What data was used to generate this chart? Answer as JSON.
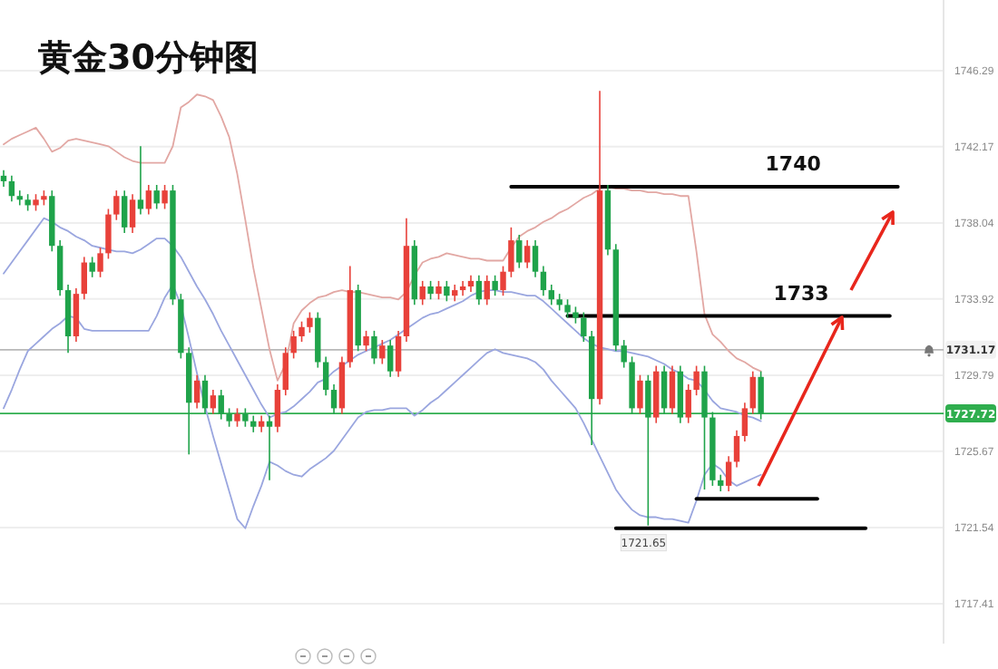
{
  "chart_data": {
    "type": "candlestick",
    "title": "黄金30分钟图",
    "categories": [
      null,
      null,
      null,
      null,
      null,
      null,
      null,
      null,
      null,
      null,
      null,
      null,
      null,
      null,
      null,
      null,
      null,
      null,
      null,
      null,
      null,
      null,
      null,
      null,
      null,
      null,
      null,
      null,
      null,
      null,
      null,
      null,
      null,
      null,
      null,
      null,
      null,
      null,
      null,
      null,
      null,
      null,
      null,
      null,
      null,
      null,
      null,
      null,
      null,
      null,
      null,
      null,
      null,
      null,
      null,
      null,
      null,
      null,
      null,
      null,
      null,
      null,
      null,
      null,
      null,
      null,
      null,
      null,
      null,
      null,
      null,
      null,
      null,
      null,
      null,
      null,
      null,
      null,
      null,
      null,
      null,
      null,
      null,
      null,
      null,
      null,
      null,
      null,
      null,
      null,
      null,
      null,
      null,
      null,
      null,
      null,
      null,
      null,
      null,
      null,
      null,
      null,
      null,
      null,
      null,
      null,
      null,
      null,
      null,
      null,
      null,
      null,
      null,
      null,
      null,
      null,
      null
    ],
    "ohlc": [
      [
        1740.6,
        1740.9,
        1740.0,
        1740.3
      ],
      [
        1740.3,
        1740.6,
        1739.2,
        1739.5
      ],
      [
        1739.5,
        1739.8,
        1739.0,
        1739.3
      ],
      [
        1739.3,
        1739.6,
        1738.7,
        1739.0
      ],
      [
        1739.0,
        1739.6,
        1738.7,
        1739.3
      ],
      [
        1739.3,
        1739.8,
        1739.0,
        1739.5
      ],
      [
        1739.5,
        1739.8,
        1736.5,
        1736.8
      ],
      [
        1736.8,
        1737.1,
        1734.1,
        1734.4
      ],
      [
        1734.4,
        1734.7,
        1731.0,
        1731.9
      ],
      [
        1731.9,
        1734.5,
        1731.6,
        1734.2
      ],
      [
        1734.2,
        1736.2,
        1733.9,
        1735.9
      ],
      [
        1735.9,
        1736.2,
        1735.1,
        1735.4
      ],
      [
        1735.4,
        1736.7,
        1735.1,
        1736.4
      ],
      [
        1736.4,
        1738.8,
        1736.1,
        1738.5
      ],
      [
        1738.5,
        1739.8,
        1738.2,
        1739.5
      ],
      [
        1739.5,
        1739.8,
        1737.5,
        1737.8
      ],
      [
        1737.8,
        1739.6,
        1737.5,
        1739.3
      ],
      [
        1739.3,
        1742.2,
        1738.5,
        1738.8
      ],
      [
        1738.8,
        1740.1,
        1738.5,
        1739.8
      ],
      [
        1739.8,
        1740.1,
        1738.8,
        1739.1
      ],
      [
        1739.1,
        1740.1,
        1738.8,
        1739.8
      ],
      [
        1739.8,
        1740.1,
        1733.6,
        1733.9
      ],
      [
        1733.9,
        1734.2,
        1730.7,
        1731.0
      ],
      [
        1731.0,
        1731.3,
        1725.5,
        1728.3
      ],
      [
        1728.3,
        1729.8,
        1728.0,
        1729.5
      ],
      [
        1729.5,
        1729.8,
        1727.7,
        1728.0
      ],
      [
        1728.0,
        1729.0,
        1727.7,
        1728.7
      ],
      [
        1728.7,
        1729.0,
        1727.4,
        1727.7
      ],
      [
        1727.7,
        1728.0,
        1727.0,
        1727.3
      ],
      [
        1727.3,
        1728.0,
        1727.0,
        1727.7
      ],
      [
        1727.7,
        1728.0,
        1727.0,
        1727.3
      ],
      [
        1727.3,
        1727.6,
        1726.7,
        1727.0
      ],
      [
        1727.0,
        1727.6,
        1726.7,
        1727.3
      ],
      [
        1727.3,
        1727.6,
        1724.1,
        1727.0
      ],
      [
        1727.0,
        1729.3,
        1726.7,
        1729.0
      ],
      [
        1729.0,
        1731.3,
        1728.7,
        1731.0
      ],
      [
        1731.0,
        1732.2,
        1730.7,
        1731.9
      ],
      [
        1731.9,
        1732.7,
        1731.6,
        1732.4
      ],
      [
        1732.4,
        1733.2,
        1732.1,
        1732.9
      ],
      [
        1732.9,
        1733.2,
        1730.2,
        1730.5
      ],
      [
        1730.5,
        1730.8,
        1728.7,
        1729.0
      ],
      [
        1729.0,
        1729.3,
        1727.7,
        1728.0
      ],
      [
        1728.0,
        1730.8,
        1727.7,
        1730.5
      ],
      [
        1730.5,
        1735.7,
        1730.2,
        1734.4
      ],
      [
        1734.4,
        1734.7,
        1731.1,
        1731.4
      ],
      [
        1731.4,
        1732.2,
        1731.1,
        1731.9
      ],
      [
        1731.9,
        1732.2,
        1730.4,
        1730.7
      ],
      [
        1730.7,
        1731.7,
        1730.4,
        1731.4
      ],
      [
        1731.4,
        1731.7,
        1729.7,
        1730.0
      ],
      [
        1730.0,
        1732.2,
        1729.7,
        1731.9
      ],
      [
        1731.9,
        1738.3,
        1731.6,
        1736.8
      ],
      [
        1736.8,
        1737.1,
        1733.6,
        1733.9
      ],
      [
        1733.9,
        1734.9,
        1733.6,
        1734.6
      ],
      [
        1734.6,
        1734.9,
        1733.9,
        1734.2
      ],
      [
        1734.2,
        1734.9,
        1733.9,
        1734.6
      ],
      [
        1734.6,
        1734.9,
        1733.8,
        1734.1
      ],
      [
        1734.1,
        1734.7,
        1733.8,
        1734.4
      ],
      [
        1734.4,
        1734.9,
        1734.1,
        1734.6
      ],
      [
        1734.6,
        1735.2,
        1734.3,
        1734.9
      ],
      [
        1734.9,
        1735.2,
        1733.6,
        1733.9
      ],
      [
        1733.9,
        1735.2,
        1733.6,
        1734.9
      ],
      [
        1734.9,
        1735.2,
        1734.1,
        1734.4
      ],
      [
        1734.4,
        1735.7,
        1734.1,
        1735.4
      ],
      [
        1735.4,
        1737.8,
        1735.1,
        1737.1
      ],
      [
        1737.1,
        1737.4,
        1735.6,
        1735.9
      ],
      [
        1735.9,
        1737.1,
        1735.6,
        1736.8
      ],
      [
        1736.8,
        1737.1,
        1735.1,
        1735.4
      ],
      [
        1735.4,
        1735.7,
        1734.1,
        1734.4
      ],
      [
        1734.4,
        1734.7,
        1733.6,
        1733.9
      ],
      [
        1733.9,
        1734.2,
        1733.3,
        1733.6
      ],
      [
        1733.6,
        1733.9,
        1732.9,
        1733.2
      ],
      [
        1733.2,
        1733.5,
        1732.6,
        1732.9
      ],
      [
        1732.9,
        1733.2,
        1731.6,
        1731.9
      ],
      [
        1731.9,
        1732.2,
        1726.0,
        1728.5
      ],
      [
        1728.5,
        1745.2,
        1728.2,
        1739.8
      ],
      [
        1739.8,
        1740.1,
        1736.3,
        1736.6
      ],
      [
        1736.6,
        1736.9,
        1731.1,
        1731.4
      ],
      [
        1731.4,
        1731.7,
        1730.2,
        1730.5
      ],
      [
        1730.5,
        1730.8,
        1727.7,
        1728.0
      ],
      [
        1728.0,
        1729.8,
        1727.7,
        1729.5
      ],
      [
        1729.5,
        1729.8,
        1721.65,
        1727.5
      ],
      [
        1727.5,
        1730.3,
        1727.2,
        1730.0
      ],
      [
        1730.0,
        1730.3,
        1727.7,
        1728.0
      ],
      [
        1728.0,
        1730.3,
        1727.7,
        1730.0
      ],
      [
        1730.0,
        1730.3,
        1727.2,
        1727.5
      ],
      [
        1727.5,
        1729.3,
        1727.2,
        1729.0
      ],
      [
        1729.0,
        1730.3,
        1728.7,
        1730.0
      ],
      [
        1730.0,
        1730.3,
        1723.6,
        1727.5
      ],
      [
        1727.5,
        1727.8,
        1723.8,
        1724.1
      ],
      [
        1724.1,
        1724.4,
        1723.5,
        1723.8
      ],
      [
        1723.8,
        1725.4,
        1723.5,
        1725.1
      ],
      [
        1725.1,
        1726.8,
        1724.8,
        1726.5
      ],
      [
        1726.5,
        1728.3,
        1726.2,
        1728.0
      ],
      [
        1728.0,
        1730.0,
        1727.7,
        1729.7
      ],
      [
        1729.7,
        1730.0,
        1727.4,
        1727.72
      ],
      null,
      null,
      null,
      null,
      null,
      null,
      null,
      null,
      null,
      null,
      null,
      null,
      null,
      null,
      null,
      null,
      null,
      null,
      null,
      null,
      null,
      null
    ],
    "colors": [
      "#1fa34a",
      "#1fa34a",
      "#1fa34a",
      "#1fa34a",
      "#e8413a",
      "#e8413a",
      "#1fa34a",
      "#1fa34a",
      "#1fa34a",
      "#e8413a",
      "#e8413a",
      "#1fa34a",
      "#e8413a",
      "#e8413a",
      "#e8413a",
      "#1fa34a",
      "#e8413a",
      "#1fa34a",
      "#e8413a",
      "#1fa34a",
      "#e8413a",
      "#1fa34a",
      "#1fa34a",
      "#1fa34a",
      "#e8413a",
      "#1fa34a",
      "#e8413a",
      "#1fa34a",
      "#1fa34a",
      "#e8413a",
      "#1fa34a",
      "#1fa34a",
      "#e8413a",
      "#1fa34a",
      "#e8413a",
      "#e8413a",
      "#e8413a",
      "#e8413a",
      "#e8413a",
      "#1fa34a",
      "#1fa34a",
      "#1fa34a",
      "#e8413a",
      "#e8413a",
      "#1fa34a",
      "#e8413a",
      "#1fa34a",
      "#e8413a",
      "#1fa34a",
      "#e8413a",
      "#e8413a",
      "#1fa34a",
      "#e8413a",
      "#1fa34a",
      "#e8413a",
      "#1fa34a",
      "#e8413a",
      "#e8413a",
      "#e8413a",
      "#1fa34a",
      "#e8413a",
      "#1fa34a",
      "#e8413a",
      "#e8413a",
      "#1fa34a",
      "#e8413a",
      "#1fa34a",
      "#1fa34a",
      "#1fa34a",
      "#1fa34a",
      "#1fa34a",
      "#1fa34a",
      "#1fa34a",
      "#1fa34a",
      "#e8413a",
      "#1fa34a",
      "#1fa34a",
      "#1fa34a",
      "#1fa34a",
      "#e8413a",
      "#1fa34a",
      "#e8413a",
      "#1fa34a",
      "#e8413a",
      "#1fa34a",
      "#e8413a",
      "#e8413a",
      "#1fa34a",
      "#1fa34a",
      "#1fa34a",
      "#e8413a",
      "#e8413a",
      "#e8413a",
      "#e8413a",
      "#1fa34a",
      null,
      null,
      null,
      null,
      null,
      null,
      null,
      null,
      null,
      null,
      null,
      null,
      null,
      null,
      null,
      null,
      null,
      null,
      null,
      null,
      null,
      null
    ],
    "series": [
      {
        "type": "line",
        "color": "#e2a7a3",
        "values": [
          1742.3,
          1742.6,
          1742.8,
          1743.0,
          1743.2,
          1742.6,
          1741.9,
          1742.1,
          1742.5,
          1742.6,
          1742.5,
          1742.4,
          1742.3,
          1742.2,
          1741.9,
          1741.6,
          1741.4,
          1741.3,
          1741.3,
          1741.3,
          1741.3,
          1742.2,
          1744.3,
          1744.6,
          1745.0,
          1744.9,
          1744.7,
          1743.8,
          1742.7,
          1740.7,
          1738.2,
          1735.6,
          1733.4,
          1731.2,
          1729.5,
          1730.4,
          1732.6,
          1733.3,
          1733.7,
          1734.0,
          1734.1,
          1734.3,
          1734.4,
          1734.3,
          1734.3,
          1734.2,
          1734.1,
          1734.0,
          1734.0,
          1733.9,
          1734.3,
          1735.2,
          1735.9,
          1736.1,
          1736.2,
          1736.4,
          1736.3,
          1736.2,
          1736.1,
          1736.1,
          1736.0,
          1736.0,
          1736.0,
          1736.7,
          1737.3,
          1737.6,
          1737.8,
          1738.1,
          1738.3,
          1738.6,
          1738.8,
          1739.1,
          1739.4,
          1739.6,
          1739.9,
          1740.0,
          1739.9,
          1739.9,
          1739.8,
          1739.8,
          1739.7,
          1739.7,
          1739.6,
          1739.6,
          1739.5,
          1739.5,
          1736.5,
          1733.1,
          1732.0,
          1731.6,
          1731.1,
          1730.7,
          1730.5,
          1730.2,
          1730.0,
          null,
          null,
          null,
          null,
          null,
          null,
          null,
          null,
          null,
          null,
          null,
          null,
          null,
          null,
          null,
          null,
          null,
          null,
          null,
          null,
          null,
          null
        ]
      },
      {
        "type": "line",
        "color": "#9aa6df",
        "values": [
          1735.3,
          1735.9,
          1736.5,
          1737.1,
          1737.7,
          1738.3,
          1738.1,
          1737.8,
          1737.6,
          1737.3,
          1737.1,
          1736.8,
          1736.7,
          1736.6,
          1736.5,
          1736.5,
          1736.4,
          1736.6,
          1736.9,
          1737.2,
          1737.2,
          1736.8,
          1736.2,
          1735.4,
          1734.6,
          1733.9,
          1733.1,
          1732.2,
          1731.4,
          1730.6,
          1729.8,
          1729.0,
          1728.2,
          1727.5,
          1727.7,
          1727.8,
          1728.1,
          1728.5,
          1728.9,
          1729.4,
          1729.6,
          1730.0,
          1730.3,
          1730.6,
          1730.9,
          1731.1,
          1731.3,
          1731.5,
          1731.7,
          1732.0,
          1732.3,
          1732.6,
          1732.9,
          1733.1,
          1733.2,
          1733.4,
          1733.6,
          1733.8,
          1734.1,
          1734.3,
          1734.4,
          1734.4,
          1734.3,
          1734.3,
          1734.2,
          1734.1,
          1734.1,
          1733.8,
          1733.4,
          1733.0,
          1732.6,
          1732.2,
          1731.8,
          1731.5,
          1731.3,
          1731.2,
          1731.1,
          1731.1,
          1731.0,
          1730.9,
          1730.8,
          1730.6,
          1730.4,
          1730.1,
          1729.9,
          1729.6,
          1729.5,
          1729.0,
          1728.4,
          1728.0,
          1727.9,
          1727.8,
          1727.6,
          1727.5,
          1727.3,
          null,
          null,
          null,
          null,
          null,
          null,
          null,
          null,
          null,
          null,
          null,
          null,
          null,
          null,
          null,
          null,
          null,
          null,
          null,
          null,
          null,
          null
        ]
      },
      {
        "type": "line",
        "color": "#9aa6df",
        "values": [
          1728.0,
          1729.0,
          1730.1,
          1731.1,
          1731.5,
          1731.9,
          1732.3,
          1732.6,
          1733.0,
          1732.9,
          1732.3,
          1732.2,
          1732.2,
          1732.2,
          1732.2,
          1732.2,
          1732.2,
          1732.2,
          1732.2,
          1733.0,
          1734.0,
          1734.7,
          1733.6,
          1731.8,
          1729.9,
          1728.1,
          1726.5,
          1725.0,
          1723.5,
          1722.0,
          1721.5,
          1722.7,
          1723.8,
          1725.1,
          1724.9,
          1724.6,
          1724.4,
          1724.3,
          1724.7,
          1725.0,
          1725.3,
          1725.7,
          1726.3,
          1726.9,
          1727.5,
          1727.8,
          1727.9,
          1727.9,
          1728.0,
          1728.0,
          1728.0,
          1727.6,
          1727.9,
          1728.3,
          1728.6,
          1729.0,
          1729.4,
          1729.8,
          1730.2,
          1730.6,
          1731.0,
          1731.2,
          1731.0,
          1730.9,
          1730.8,
          1730.7,
          1730.5,
          1730.1,
          1729.5,
          1729.0,
          1728.5,
          1728.0,
          1727.2,
          1726.3,
          1725.4,
          1724.5,
          1723.6,
          1723.0,
          1722.5,
          1722.2,
          1722.1,
          1722.1,
          1722.0,
          1722.0,
          1721.9,
          1721.8,
          1723.0,
          1724.4,
          1725.0,
          1724.7,
          1724.1,
          1723.8,
          1724.0,
          1724.2,
          1724.4,
          null,
          null,
          null,
          null,
          null,
          null,
          null,
          null,
          null,
          null,
          null,
          null,
          null,
          null,
          null,
          null,
          null,
          null,
          null,
          null,
          null,
          null
        ]
      },
      {
        "type": "line",
        "color": "#000000",
        "values": [
          null,
          null,
          null,
          null,
          null,
          null,
          null,
          null,
          null,
          null,
          null,
          null,
          null,
          null,
          null,
          null,
          null,
          null,
          null,
          null,
          null,
          null,
          null,
          null,
          null,
          null,
          null,
          null,
          null,
          null,
          null,
          null,
          null,
          null,
          null,
          null,
          null,
          null,
          null,
          null,
          null,
          null,
          null,
          null,
          null,
          null,
          null,
          null,
          null,
          null,
          null,
          null,
          null,
          null,
          null,
          null,
          null,
          null,
          null,
          null,
          null,
          null,
          null,
          1740,
          1740,
          1740,
          1740,
          1740,
          1740,
          1740,
          1740,
          1740,
          1740,
          1740,
          1740,
          1740,
          1740,
          1740,
          1740,
          1740,
          1740,
          1740,
          1740,
          1740,
          1740,
          1740,
          1740,
          1740,
          1740,
          1740,
          1740,
          1740,
          1740,
          1740,
          1740,
          1740,
          1740,
          1740,
          1740,
          1740,
          1740,
          1740,
          1740,
          1740,
          1740,
          1740,
          1740,
          1740,
          1740,
          1740,
          1740,
          1740,
          null,
          null,
          null,
          null,
          null
        ]
      },
      {
        "type": "line",
        "color": "#000000",
        "values": [
          null,
          null,
          null,
          null,
          null,
          null,
          null,
          null,
          null,
          null,
          null,
          null,
          null,
          null,
          null,
          null,
          null,
          null,
          null,
          null,
          null,
          null,
          null,
          null,
          null,
          null,
          null,
          null,
          null,
          null,
          null,
          null,
          null,
          null,
          null,
          null,
          null,
          null,
          null,
          null,
          null,
          null,
          null,
          null,
          null,
          null,
          null,
          null,
          null,
          null,
          null,
          null,
          null,
          null,
          null,
          null,
          null,
          null,
          null,
          null,
          null,
          null,
          null,
          null,
          null,
          null,
          null,
          null,
          null,
          null,
          1733,
          1733,
          1733,
          1733,
          1733,
          1733,
          1733,
          1733,
          1733,
          1733,
          1733,
          1733,
          1733,
          1733,
          1733,
          1733,
          1733,
          1733,
          1733,
          1733,
          1733,
          1733,
          1733,
          1733,
          1733,
          1733,
          1733,
          1733,
          1733,
          1733,
          1733,
          1733,
          1733,
          1733,
          1733,
          1733,
          1733,
          1733,
          1733,
          1733,
          1733,
          null,
          null,
          null,
          null,
          null,
          null
        ]
      },
      {
        "type": "line",
        "color": "#000000",
        "values": [
          null,
          null,
          null,
          null,
          null,
          null,
          null,
          null,
          null,
          null,
          null,
          null,
          null,
          null,
          null,
          null,
          null,
          null,
          null,
          null,
          null,
          null,
          null,
          null,
          null,
          null,
          null,
          null,
          null,
          null,
          null,
          null,
          null,
          null,
          null,
          null,
          null,
          null,
          null,
          null,
          null,
          null,
          null,
          null,
          null,
          null,
          null,
          null,
          null,
          null,
          null,
          null,
          null,
          null,
          null,
          null,
          null,
          null,
          null,
          null,
          null,
          null,
          null,
          null,
          null,
          null,
          null,
          null,
          null,
          null,
          null,
          null,
          null,
          null,
          null,
          null,
          null,
          null,
          null,
          null,
          null,
          null,
          null,
          null,
          null,
          null,
          1723.1,
          1723.1,
          1723.1,
          1723.1,
          1723.1,
          1723.1,
          1723.1,
          1723.1,
          1723.1,
          1723.1,
          1723.1,
          1723.1,
          1723.1,
          1723.1,
          1723.1,
          1723.1,
          null,
          null,
          null,
          null,
          null,
          null,
          null,
          null,
          null,
          null,
          null,
          null,
          null,
          null,
          null
        ]
      },
      {
        "type": "line",
        "color": "#000000",
        "values": [
          null,
          null,
          null,
          null,
          null,
          null,
          null,
          null,
          null,
          null,
          null,
          null,
          null,
          null,
          null,
          null,
          null,
          null,
          null,
          null,
          null,
          null,
          null,
          null,
          null,
          null,
          null,
          null,
          null,
          null,
          null,
          null,
          null,
          null,
          null,
          null,
          null,
          null,
          null,
          null,
          null,
          null,
          null,
          null,
          null,
          null,
          null,
          null,
          null,
          null,
          null,
          null,
          null,
          null,
          null,
          null,
          null,
          null,
          null,
          null,
          null,
          null,
          null,
          null,
          null,
          null,
          null,
          null,
          null,
          null,
          null,
          null,
          null,
          null,
          null,
          null,
          1721.5,
          1721.5,
          1721.5,
          1721.5,
          1721.5,
          1721.5,
          1721.5,
          1721.5,
          1721.5,
          1721.5,
          1721.5,
          1721.5,
          1721.5,
          1721.5,
          1721.5,
          1721.5,
          1721.5,
          1721.5,
          1721.5,
          1721.5,
          1721.5,
          1721.5,
          1721.5,
          1721.5,
          1721.5,
          1721.5,
          1721.5,
          1721.5,
          1721.5,
          1721.5,
          1721.5,
          1721.5,
          null,
          null,
          null,
          null,
          null,
          null,
          null,
          null,
          null
        ]
      }
    ],
    "annotations": [
      {
        "text": "1740",
        "y": 1740
      },
      {
        "text": "1733",
        "y": 1733
      },
      {
        "text": "1721.65",
        "y": 1721.65
      }
    ],
    "ref_lines": [
      {
        "axis": "y",
        "value": 1731.17,
        "label": "1731.17",
        "color": "#b8b8b8"
      },
      {
        "axis": "y",
        "value": 1727.72,
        "label": "1727.72",
        "color": "#2fae4e"
      }
    ],
    "ylim": [
      1715.25,
      1750.12
    ],
    "yticks": [
      {
        "value": 1717.41,
        "label": "1717.41"
      },
      {
        "value": 1721.54,
        "label": "1721.54"
      },
      {
        "value": 1725.67,
        "label": "1725.67"
      },
      {
        "value": 1729.79,
        "label": "1729.79"
      },
      {
        "value": 1733.92,
        "label": "1733.92"
      },
      {
        "value": 1738.04,
        "label": "1738.04"
      },
      {
        "value": 1742.17,
        "label": "1742.17"
      },
      {
        "value": 1746.29,
        "label": "1746.29"
      }
    ],
    "grid": "y",
    "tick_labels": "y"
  }
}
